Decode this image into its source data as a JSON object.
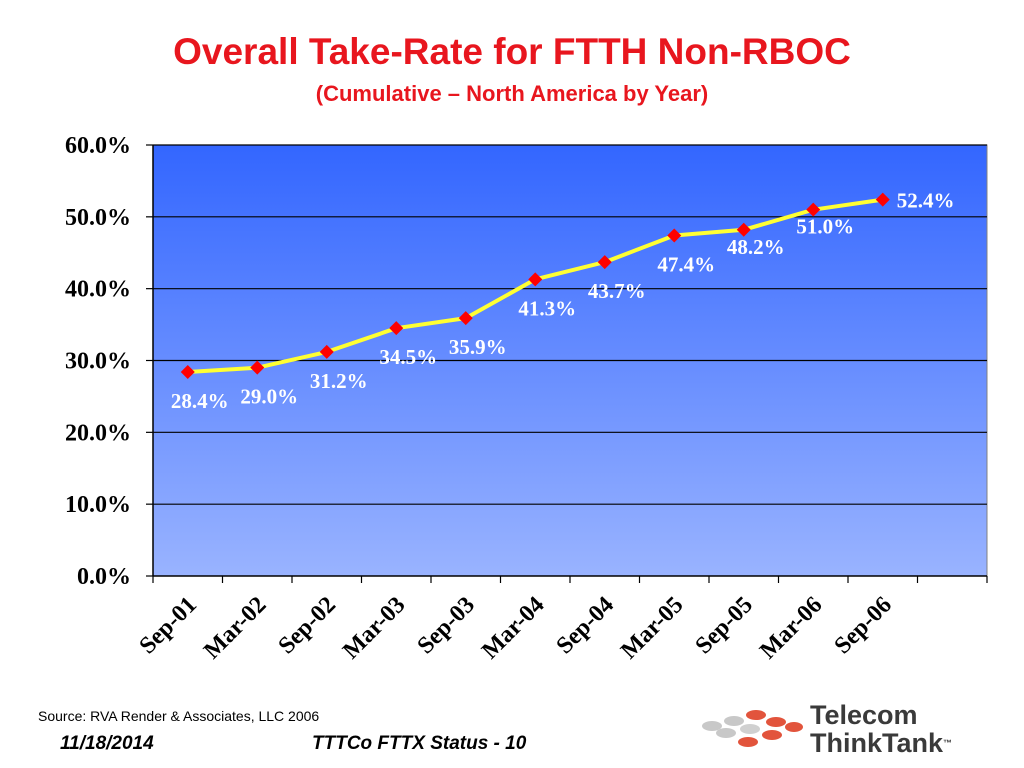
{
  "title": "Overall Take-Rate for FTTH Non-RBOC",
  "subtitle": "(Cumulative – North America by Year)",
  "chart_data": {
    "type": "line",
    "title": "Overall Take-Rate for FTTH Non-RBOC",
    "subtitle": "(Cumulative – North America by Year)",
    "categories": [
      "Sep-01",
      "Mar-02",
      "Sep-02",
      "Mar-03",
      "Sep-03",
      "Mar-04",
      "Sep-04",
      "Mar-05",
      "Sep-05",
      "Mar-06",
      "Sep-06"
    ],
    "values": [
      28.4,
      29.0,
      31.2,
      34.5,
      35.9,
      41.3,
      43.7,
      47.4,
      48.2,
      51.0,
      52.4
    ],
    "data_labels": [
      "28.4%",
      "29.0%",
      "31.2%",
      "34.5%",
      "35.9%",
      "41.3%",
      "43.7%",
      "47.4%",
      "48.2%",
      "51.0%",
      "52.4%"
    ],
    "ylim": [
      0,
      60
    ],
    "yticks": [
      "0.0%",
      "10.0%",
      "20.0%",
      "30.0%",
      "40.0%",
      "50.0%",
      "60.0%"
    ],
    "xlabel": "",
    "ylabel": "",
    "grid": true,
    "legend": "none",
    "colors": {
      "line": "#ffff33",
      "marker": "#ff0000",
      "plot_top": "#3366ff",
      "plot_bottom": "#99b3ff",
      "label": "#ffffff"
    }
  },
  "footer": {
    "source": "Source: RVA Render & Associates, LLC   2006",
    "date": "11/18/2014",
    "center": "TTTCo FTTX Status - 10"
  },
  "logo": {
    "line1": "Telecom",
    "line2": "ThinkTank",
    "tm": "™"
  }
}
